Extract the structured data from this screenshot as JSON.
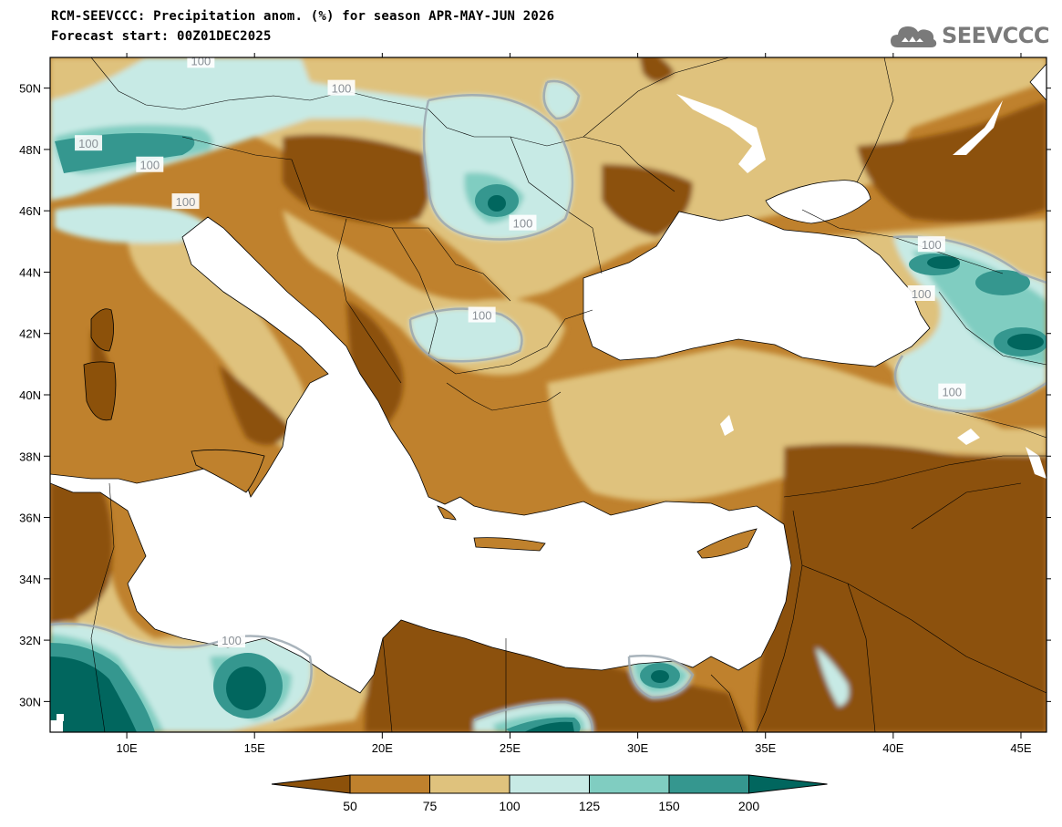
{
  "header": {
    "title_line1": "RCM-SEEVCCC: Precipitation anom. (%) for season APR-MAY-JUN 2026",
    "title_line2": "Forecast start: 00Z01DEC2025"
  },
  "logo": {
    "text": "SEEVCCC"
  },
  "map": {
    "lon_range": [
      7,
      46
    ],
    "lat_range": [
      29,
      51
    ],
    "lon_ticks": [
      {
        "value": 10,
        "label": "10E"
      },
      {
        "value": 15,
        "label": "15E"
      },
      {
        "value": 20,
        "label": "20E"
      },
      {
        "value": 25,
        "label": "25E"
      },
      {
        "value": 30,
        "label": "30E"
      },
      {
        "value": 35,
        "label": "35E"
      },
      {
        "value": 40,
        "label": "40E"
      },
      {
        "value": 45,
        "label": "45E"
      }
    ],
    "lat_ticks": [
      {
        "value": 30,
        "label": "30N"
      },
      {
        "value": 32,
        "label": "32N"
      },
      {
        "value": 34,
        "label": "34N"
      },
      {
        "value": 36,
        "label": "36N"
      },
      {
        "value": 38,
        "label": "38N"
      },
      {
        "value": 40,
        "label": "40N"
      },
      {
        "value": 42,
        "label": "42N"
      },
      {
        "value": 44,
        "label": "44N"
      },
      {
        "value": 46,
        "label": "46N"
      },
      {
        "value": 48,
        "label": "48N"
      },
      {
        "value": 50,
        "label": "50N"
      }
    ],
    "contour_labels": [
      {
        "text": "100",
        "lon": 12.9,
        "lat": 50.9
      },
      {
        "text": "100",
        "lon": 18.4,
        "lat": 50.0
      },
      {
        "text": "100",
        "lon": 8.5,
        "lat": 48.2
      },
      {
        "text": "100",
        "lon": 10.9,
        "lat": 47.5
      },
      {
        "text": "100",
        "lon": 12.3,
        "lat": 46.3
      },
      {
        "text": "100",
        "lon": 25.5,
        "lat": 45.6
      },
      {
        "text": "100",
        "lon": 41.5,
        "lat": 44.9
      },
      {
        "text": "100",
        "lon": 41.1,
        "lat": 43.3
      },
      {
        "text": "100",
        "lon": 23.9,
        "lat": 42.6
      },
      {
        "text": "100",
        "lon": 42.3,
        "lat": 40.1
      },
      {
        "text": "100",
        "lon": 14.1,
        "lat": 32.0
      }
    ]
  },
  "colorbar": {
    "labels": [
      "50",
      "75",
      "100",
      "125",
      "150",
      "200"
    ],
    "colors": [
      "#8c510a",
      "#bf812d",
      "#dfc27d",
      "#c7eae5",
      "#80cdc1",
      "#35978f",
      "#01665e"
    ]
  }
}
